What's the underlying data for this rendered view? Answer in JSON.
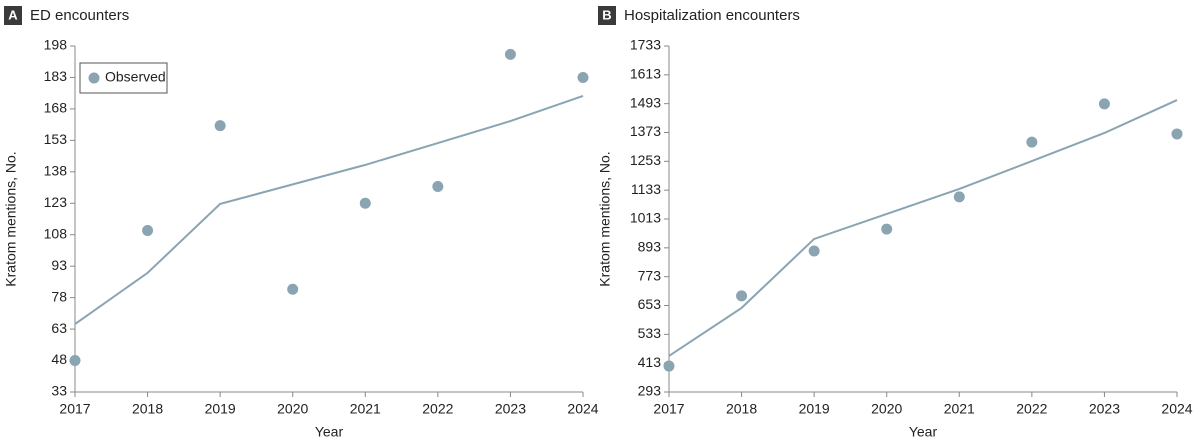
{
  "chart_data": [
    {
      "type": "scatter",
      "panel": "A",
      "title": "ED encounters",
      "x_label": "Year",
      "y_label": "Kratom mentions, No.",
      "x": [
        2017,
        2018,
        2019,
        2020,
        2021,
        2022,
        2023,
        2024
      ],
      "xlim": [
        2017,
        2024
      ],
      "xticks": [
        2017,
        2018,
        2019,
        2020,
        2021,
        2022,
        2023,
        2024
      ],
      "ylim": [
        33,
        198
      ],
      "yticks": [
        33,
        48,
        63,
        78,
        93,
        108,
        123,
        138,
        153,
        168,
        183,
        198
      ],
      "legend": "top-left",
      "series": [
        {
          "name": "Observed",
          "kind": "points",
          "color": "#8aa4b2",
          "values": [
            48,
            110,
            160,
            82,
            123,
            131,
            194,
            183
          ]
        },
        {
          "kind": "line",
          "color": "#8aa4b2",
          "values": [
            65.4,
            89.8,
            122.7,
            132,
            141.3,
            151.7,
            162.2,
            174.2
          ]
        }
      ]
    },
    {
      "type": "scatter",
      "panel": "B",
      "title": "Hospitalization encounters",
      "x_label": "Year",
      "y_label": "Kratom mentions, No.",
      "x": [
        2017,
        2018,
        2019,
        2020,
        2021,
        2022,
        2023,
        2024
      ],
      "xlim": [
        2017,
        2024
      ],
      "xticks": [
        2017,
        2018,
        2019,
        2020,
        2021,
        2022,
        2023,
        2024
      ],
      "ylim": [
        293,
        1733
      ],
      "yticks": [
        293,
        413,
        533,
        653,
        773,
        893,
        1013,
        1133,
        1253,
        1373,
        1493,
        1613,
        1733
      ],
      "series": [
        {
          "kind": "points",
          "color": "#8aa4b2",
          "values": [
            401,
            693,
            880,
            971,
            1105,
            1333,
            1492,
            1367
          ]
        },
        {
          "kind": "line",
          "color": "#8aa4b2",
          "values": [
            443,
            643,
            930,
            1034,
            1138,
            1254,
            1371,
            1508
          ]
        }
      ]
    }
  ]
}
